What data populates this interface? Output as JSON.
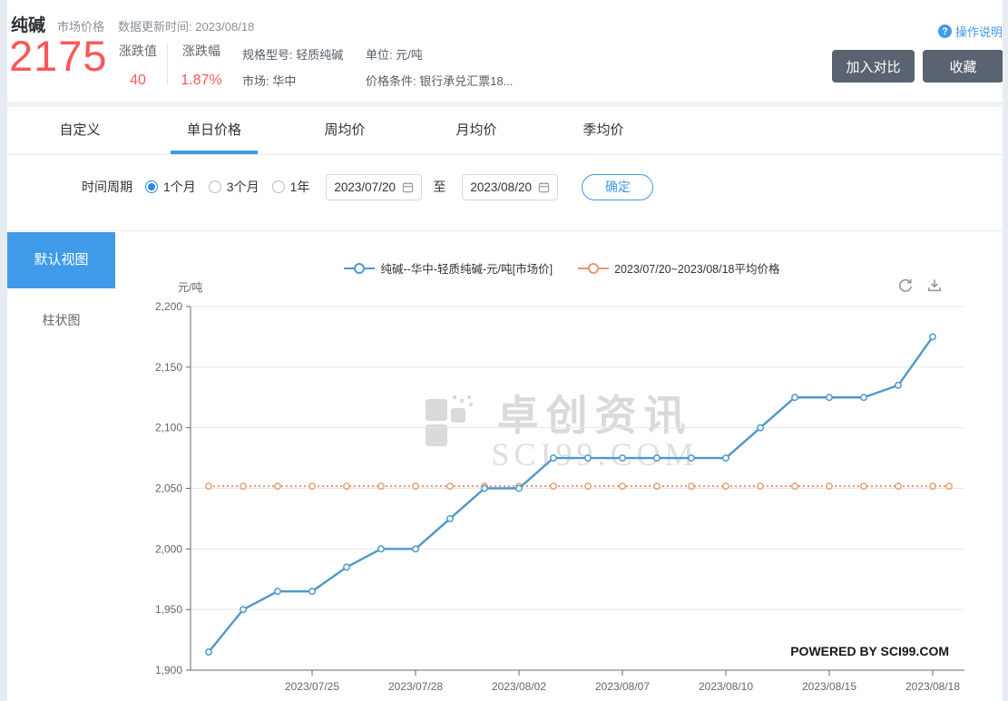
{
  "header": {
    "title": "纯碱",
    "subtitle": "市场价格",
    "update_time": "数据更新时间:  2023/08/18",
    "price": "2175",
    "change_value_label": "涨跌值",
    "change_value": "40",
    "change_pct_label": "涨跌幅",
    "change_pct": "1.87%",
    "spec": "规格型号: 轻质纯碱",
    "market": "市场: 华中",
    "unit": "单位: 元/吨",
    "price_condition": "价格条件: 银行承兑汇票18...",
    "help_icon": "?",
    "help_label": "操作说明",
    "compare_button": "加入对比",
    "favorite_button": "收藏"
  },
  "tabs": {
    "items": [
      {
        "label": "自定义",
        "active": false
      },
      {
        "label": "单日价格",
        "active": true
      },
      {
        "label": "周均价",
        "active": false
      },
      {
        "label": "月均价",
        "active": false
      },
      {
        "label": "季均价",
        "active": false
      }
    ]
  },
  "filter": {
    "period_label": "时间周期",
    "options": [
      {
        "label": "1个月",
        "selected": true
      },
      {
        "label": "3个月",
        "selected": false
      },
      {
        "label": "1年",
        "selected": false
      }
    ],
    "start_date": "2023/07/20",
    "to_label": "至",
    "end_date": "2023/08/20",
    "confirm_button": "确定"
  },
  "sidebar": {
    "items": [
      {
        "label": "默认视图",
        "active": true
      },
      {
        "label": "柱状图",
        "active": false
      }
    ]
  },
  "chart": {
    "unit_label": "元/吨",
    "watermark_title": "卓创资讯",
    "watermark_domain": "SCI99.COM",
    "powered_by": "POWERED BY SCI99.COM",
    "refresh_icon": "refresh",
    "download_icon": "download"
  },
  "colors": {
    "accent_blue": "#3e9ae9",
    "price_red": "#fb5858",
    "dark_button": "#5a6370",
    "line_blue": "#4f98cb",
    "avg_orange": "#e5986f"
  },
  "chart_data": {
    "type": "line",
    "ylabel": "元/吨",
    "ylim": [
      1900,
      2200
    ],
    "ytick_step": 50,
    "ytick_labels": [
      "1,900",
      "1,950",
      "2,000",
      "2,050",
      "2,100",
      "2,150",
      "2,200"
    ],
    "grid": true,
    "legend_position": "top",
    "x_dates": [
      "2023/07/20",
      "2023/07/21",
      "2023/07/24",
      "2023/07/25",
      "2023/07/26",
      "2023/07/27",
      "2023/07/28",
      "2023/07/31",
      "2023/08/01",
      "2023/08/02",
      "2023/08/03",
      "2023/08/04",
      "2023/08/07",
      "2023/08/08",
      "2023/08/09",
      "2023/08/10",
      "2023/08/11",
      "2023/08/14",
      "2023/08/15",
      "2023/08/16",
      "2023/08/17",
      "2023/08/18"
    ],
    "xtick_indices": [
      3,
      6,
      9,
      12,
      15,
      18,
      21
    ],
    "xtick_labels": [
      "2023/07/25",
      "2023/07/28",
      "2023/08/02",
      "2023/08/07",
      "2023/08/10",
      "2023/08/15",
      "2023/08/18"
    ],
    "series": [
      {
        "name": "纯碱--华中-轻质纯碱-元/吨[市场价]",
        "color": "#4f98cb",
        "style": "solid",
        "values": [
          1915,
          1950,
          1965,
          1965,
          1985,
          2000,
          2000,
          2025,
          2050,
          2050,
          2075,
          2075,
          2075,
          2075,
          2075,
          2075,
          2100,
          2125,
          2125,
          2125,
          2135,
          2175
        ]
      },
      {
        "name": "2023/07/20~2023/08/18平均价格",
        "color": "#e5986f",
        "style": "dotted",
        "avg_value": 2051.8
      }
    ]
  }
}
